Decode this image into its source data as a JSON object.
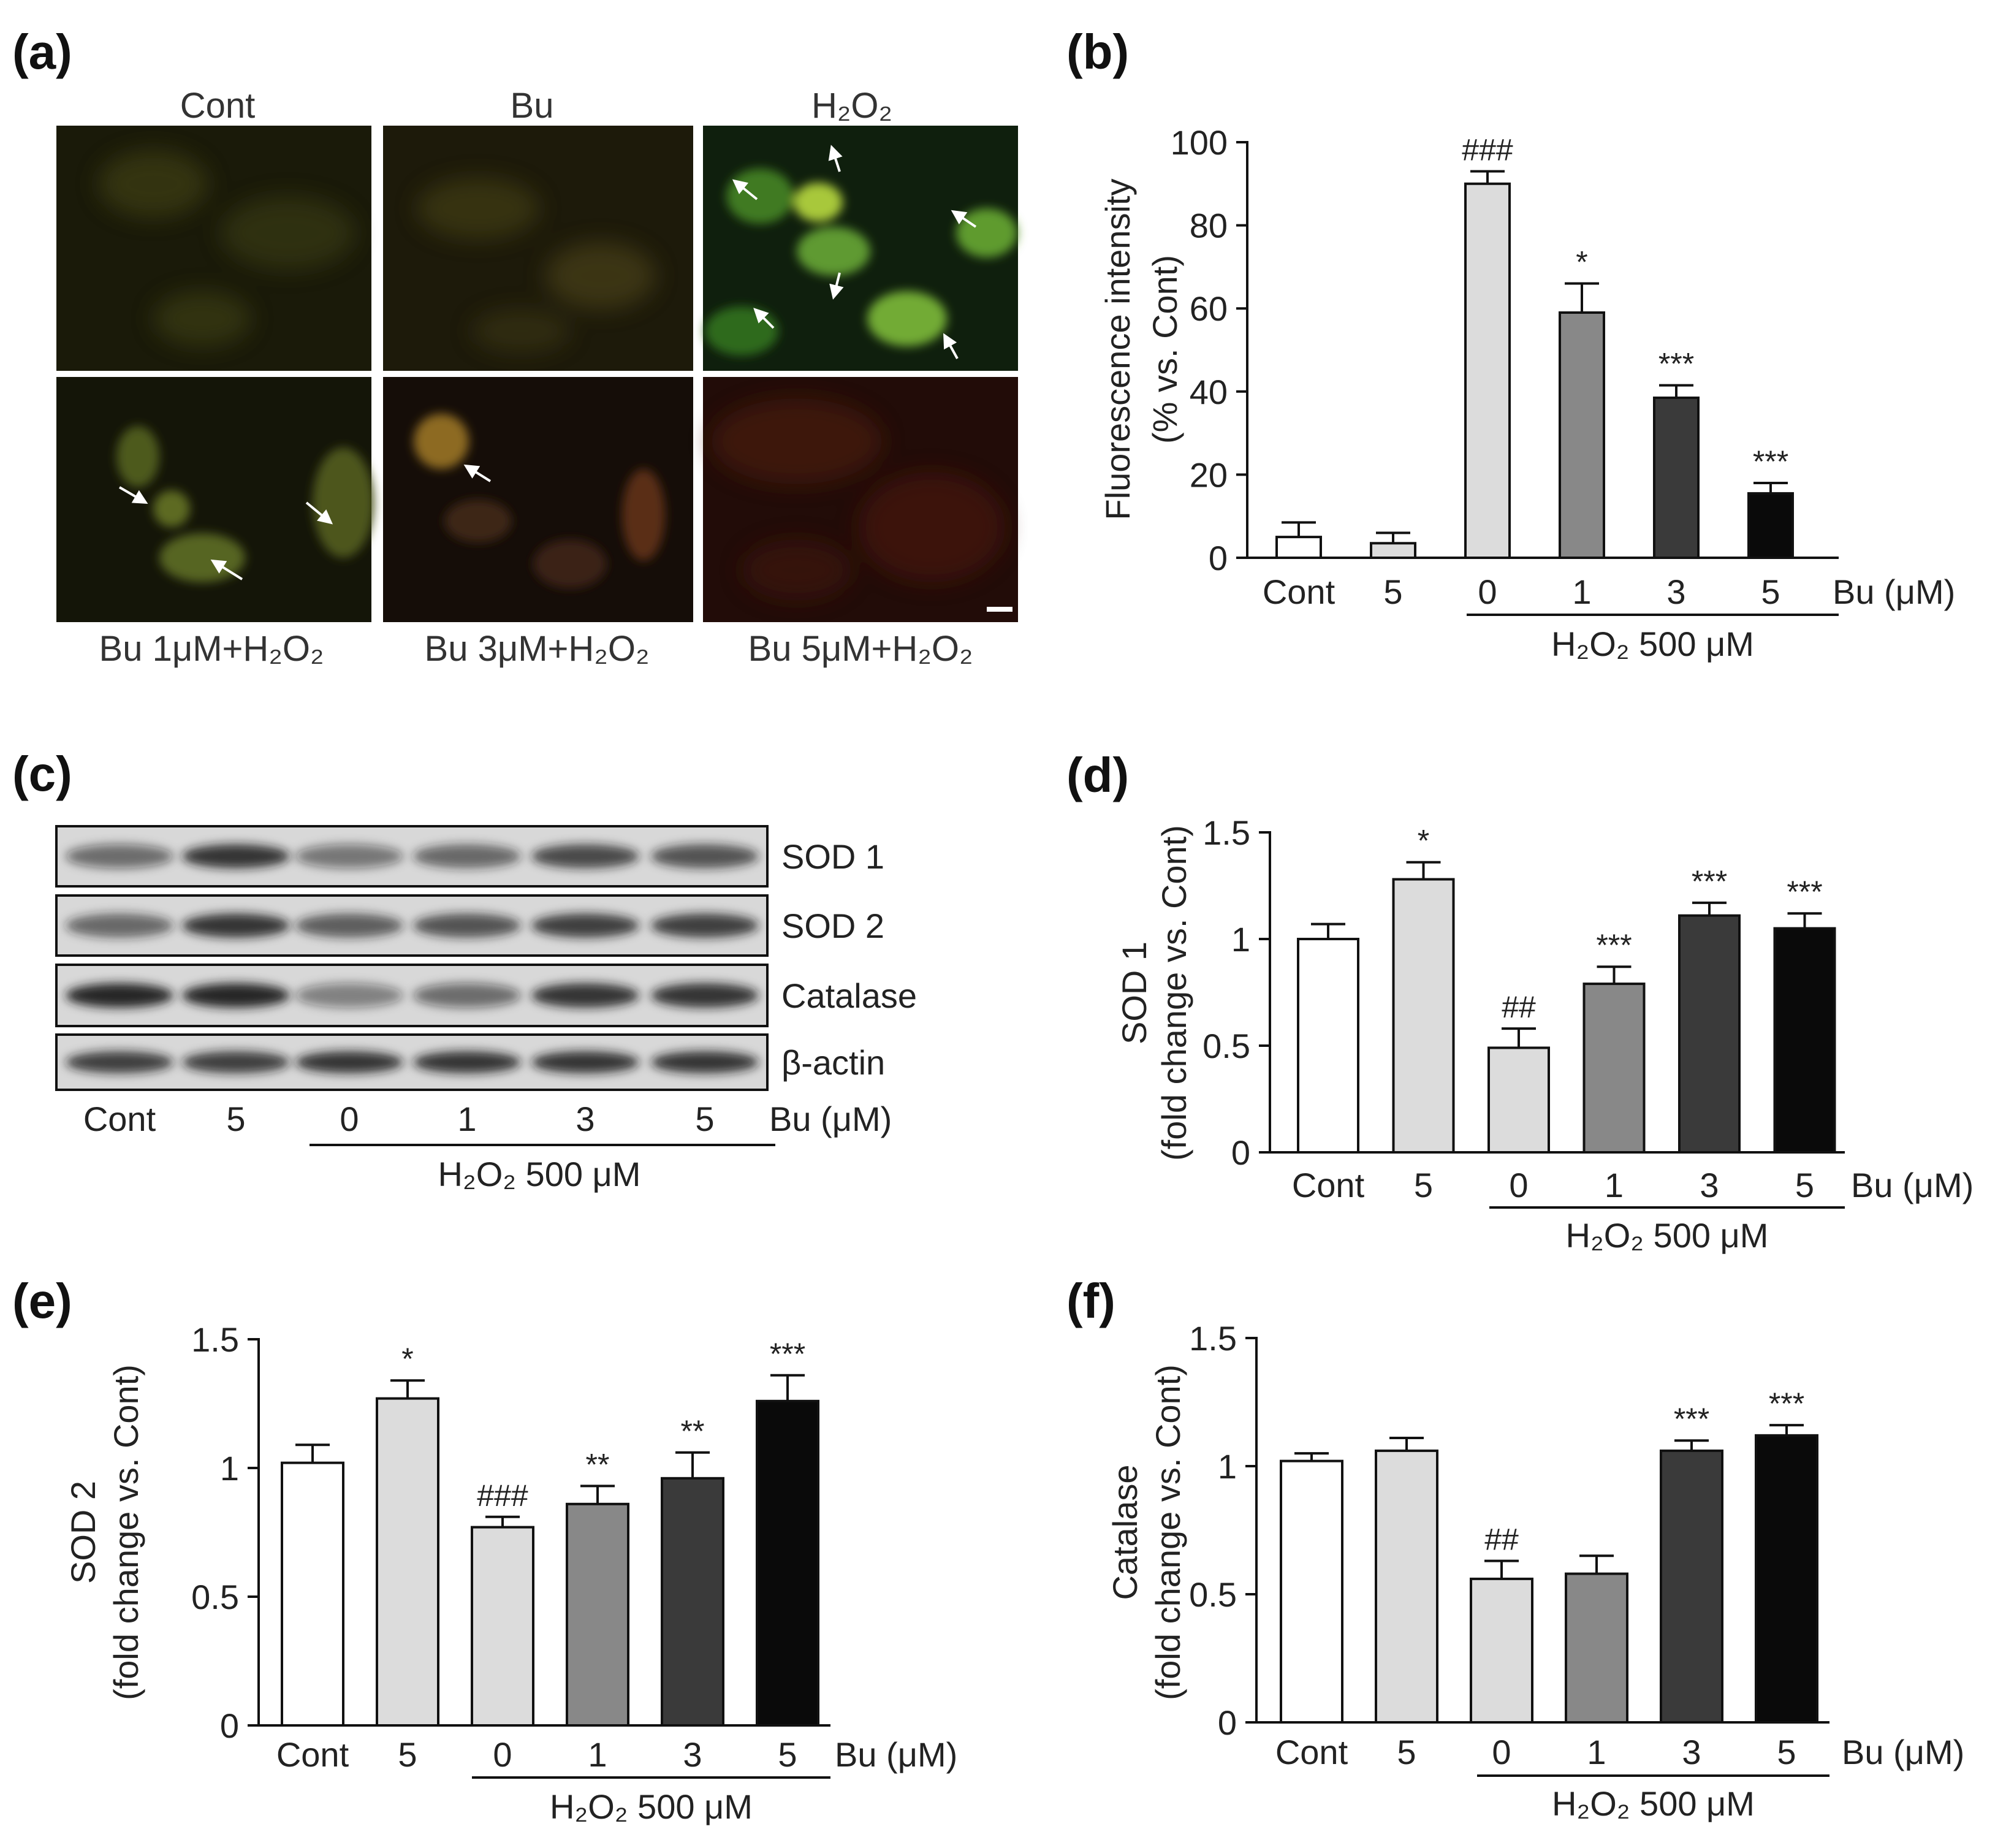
{
  "panels": {
    "a": {
      "label": "(a)",
      "top_titles": [
        "Cont",
        "Bu",
        "H₂O₂"
      ],
      "bottom_titles": [
        "Bu 1μM+H₂O₂",
        "Bu 3μM+H₂O₂",
        "Bu 5μM+H₂O₂"
      ],
      "cells": [
        {
          "tone": "dim-green",
          "arrows": 0
        },
        {
          "tone": "dim-olive",
          "arrows": 0
        },
        {
          "tone": "bright-green",
          "arrows": 6
        },
        {
          "tone": "green-spots",
          "arrows": 3
        },
        {
          "tone": "orange-red",
          "arrows": 1
        },
        {
          "tone": "dark-red",
          "arrows": 0
        }
      ]
    },
    "c": {
      "label": "(c)",
      "bands": [
        "SOD 1",
        "SOD 2",
        "Catalase",
        "β-actin"
      ],
      "lanes": [
        "Cont",
        "5",
        "0",
        "1",
        "3",
        "5"
      ],
      "unit_label": "Bu (μM)",
      "group_label": "H₂O₂ 500 μM"
    }
  },
  "chart_data": [
    {
      "panel": "(b)",
      "type": "bar",
      "categories": [
        "Cont",
        "5",
        "0",
        "1",
        "3",
        "5"
      ],
      "values": [
        5,
        3.5,
        90,
        59,
        38.5,
        15.5
      ],
      "errors": [
        3.5,
        2.5,
        3,
        7,
        3,
        2.5
      ],
      "annotations": [
        "",
        "",
        "###",
        "*",
        "***",
        "***"
      ],
      "colors": [
        "#ffffff",
        "#dcdcdc",
        "#dcdcdc",
        "#888888",
        "#3a3a3a",
        "#0a0a0a"
      ],
      "ylabel": [
        "Fluorescence intensity",
        "(% vs. Cont)"
      ],
      "ylim": [
        0,
        100
      ],
      "yticks": [
        0,
        20,
        40,
        60,
        80,
        100
      ],
      "xunit": "Bu (μM)",
      "group_label": "H₂O₂ 500 μM",
      "grid": false
    },
    {
      "panel": "(d)",
      "type": "bar",
      "categories": [
        "Cont",
        "5",
        "0",
        "1",
        "3",
        "5"
      ],
      "values": [
        1.0,
        1.28,
        0.49,
        0.79,
        1.11,
        1.05
      ],
      "errors": [
        0.07,
        0.08,
        0.09,
        0.08,
        0.06,
        0.07
      ],
      "annotations": [
        "",
        "*",
        "##",
        "***",
        "***",
        "***"
      ],
      "colors": [
        "#ffffff",
        "#dcdcdc",
        "#dcdcdc",
        "#888888",
        "#3a3a3a",
        "#0a0a0a"
      ],
      "ylabel": [
        "SOD 1",
        "(fold change vs. Cont)"
      ],
      "ylim": [
        0,
        1.5
      ],
      "yticks": [
        "0",
        "0.5",
        "1",
        "1.5"
      ],
      "xunit": "Bu (μM)",
      "group_label": "H₂O₂ 500 μM",
      "grid": false
    },
    {
      "panel": "(e)",
      "type": "bar",
      "categories": [
        "Cont",
        "5",
        "0",
        "1",
        "3",
        "5"
      ],
      "values": [
        1.02,
        1.27,
        0.77,
        0.86,
        0.96,
        1.26
      ],
      "errors": [
        0.07,
        0.07,
        0.04,
        0.07,
        0.1,
        0.1
      ],
      "annotations": [
        "",
        "*",
        "###",
        "**",
        "**",
        "***"
      ],
      "colors": [
        "#ffffff",
        "#dcdcdc",
        "#dcdcdc",
        "#888888",
        "#3a3a3a",
        "#0a0a0a"
      ],
      "ylabel": [
        "SOD 2",
        "(fold change vs. Cont)"
      ],
      "ylim": [
        0,
        1.5
      ],
      "yticks": [
        "0",
        "0.5",
        "1",
        "1.5"
      ],
      "xunit": "Bu (μM)",
      "group_label": "H₂O₂ 500 μM",
      "grid": false
    },
    {
      "panel": "(f)",
      "type": "bar",
      "categories": [
        "Cont",
        "5",
        "0",
        "1",
        "3",
        "5"
      ],
      "values": [
        1.02,
        1.06,
        0.56,
        0.58,
        1.06,
        1.12
      ],
      "errors": [
        0.03,
        0.05,
        0.07,
        0.07,
        0.04,
        0.04
      ],
      "annotations": [
        "",
        "",
        "##",
        "",
        "***",
        "***"
      ],
      "colors": [
        "#ffffff",
        "#dcdcdc",
        "#dcdcdc",
        "#888888",
        "#3a3a3a",
        "#0a0a0a"
      ],
      "ylabel": [
        "Catalase",
        "(fold change vs. Cont)"
      ],
      "ylim": [
        0,
        1.5
      ],
      "yticks": [
        "0",
        "0.5",
        "1",
        "1.5"
      ],
      "xunit": "Bu (μM)",
      "group_label": "H₂O₂ 500 μM",
      "grid": false
    }
  ]
}
